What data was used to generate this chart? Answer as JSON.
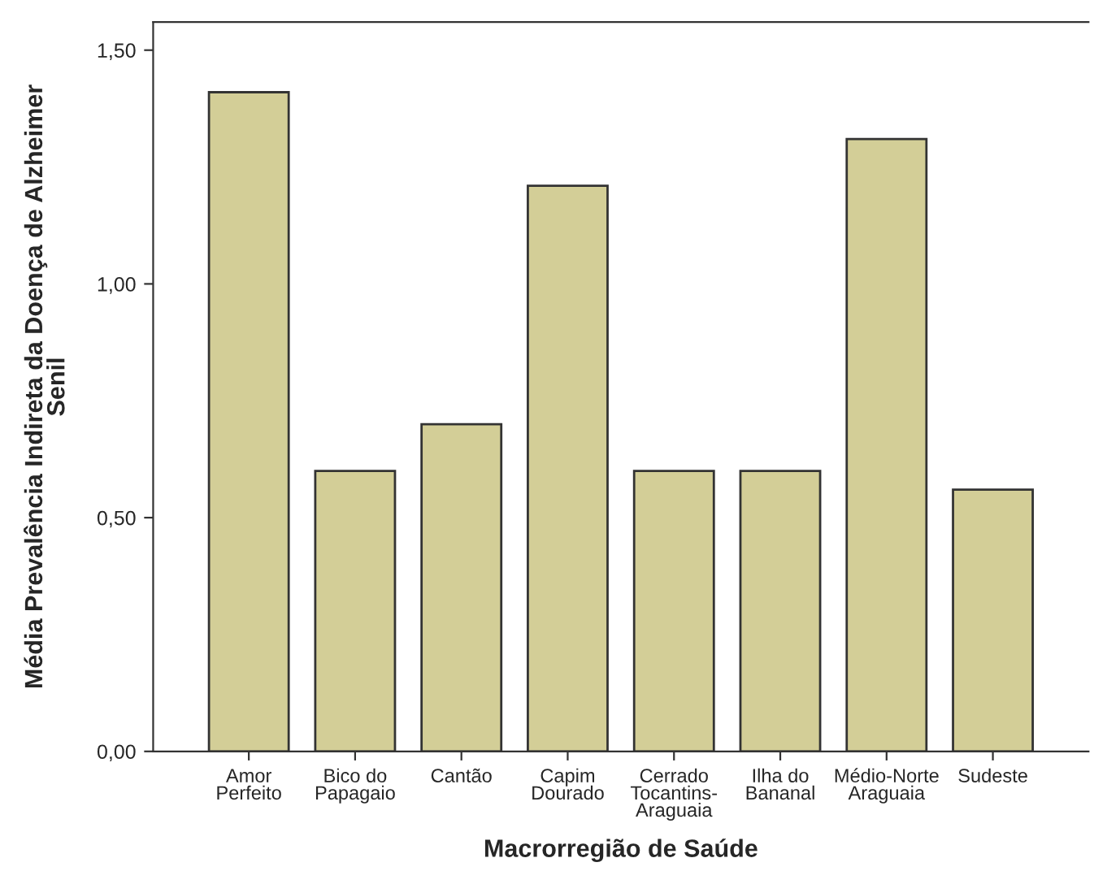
{
  "chart_data": {
    "type": "bar",
    "xlabel": "Macrorregião de Saúde",
    "ylabel": "Média Prevalência Indireta da Doença de Alzheimer\nSenil",
    "categories": [
      "Amor\nPerfeito",
      "Bico do\nPapagaio",
      "Cantão",
      "Capim\nDourado",
      "Cerrado\nTocantins-\nAraguaia",
      "Ilha do\nBananal",
      "Médio-Norte\nAraguaia",
      "Sudeste"
    ],
    "values": [
      1.41,
      0.6,
      0.7,
      1.21,
      0.6,
      0.6,
      1.31,
      0.56
    ],
    "color": "#d3ce97",
    "ylim": [
      0,
      1.56
    ],
    "yticks": [
      {
        "value": 0,
        "label": "0,00"
      },
      {
        "value": 0.5,
        "label": "0,50"
      },
      {
        "value": 1.0,
        "label": "1,00"
      },
      {
        "value": 1.5,
        "label": "1,50"
      }
    ],
    "grid": false
  }
}
